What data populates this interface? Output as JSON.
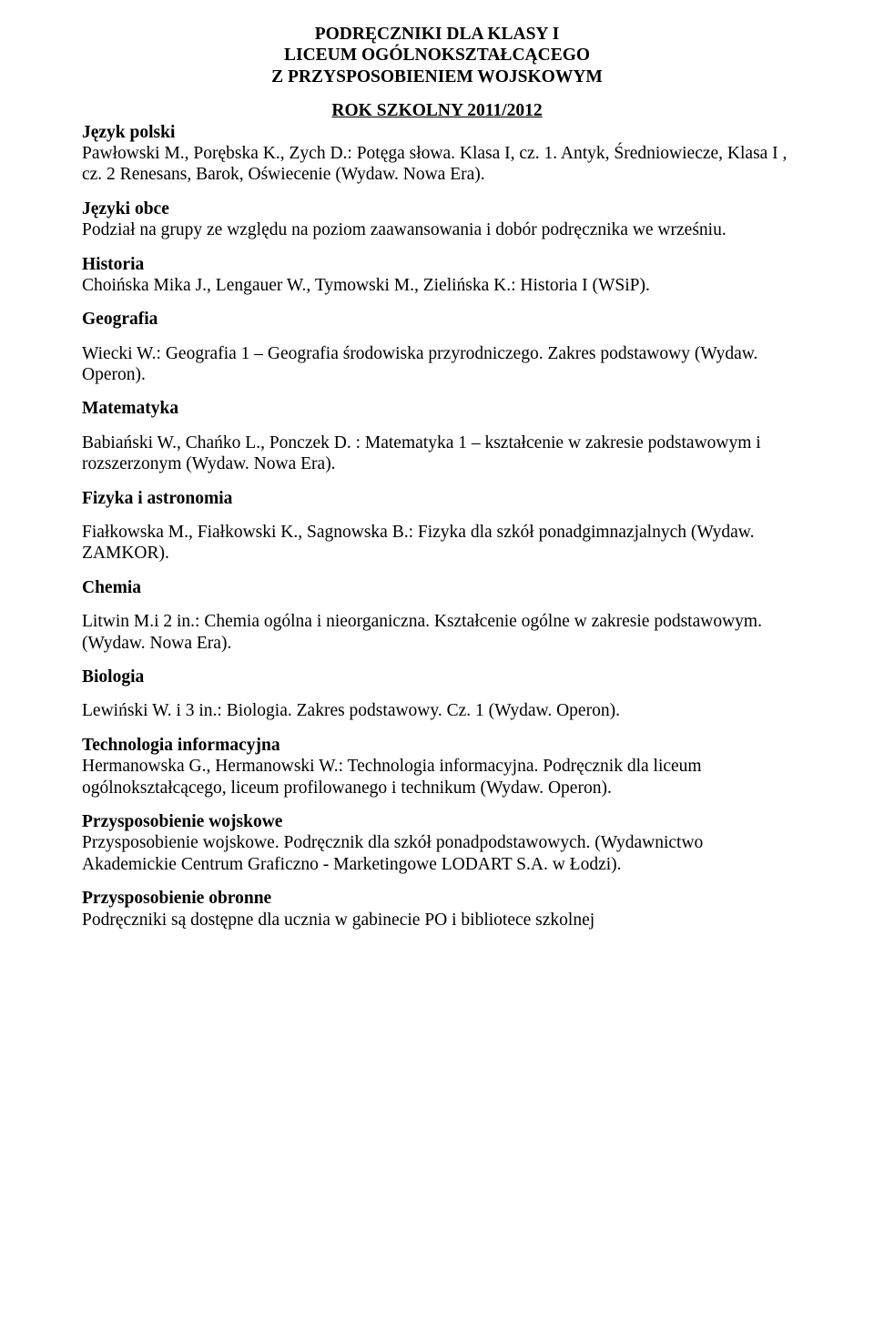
{
  "title": {
    "line1": "PODRĘCZNIKI DLA KLASY I",
    "line2": "LICEUM OGÓLNOKSZTAŁCĄCEGO",
    "line3": "Z PRZYSPOSOBIENIEM WOJSKOWYM"
  },
  "school_year": "ROK  SZKOLNY  2011/2012",
  "polski": {
    "heading": "Język polski",
    "text": "Pawłowski M., Porębska K., Zych D.: Potęga słowa. Klasa I, cz. 1. Antyk, Średniowiecze, Klasa I , cz. 2 Renesans, Barok, Oświecenie (Wydaw. Nowa Era)."
  },
  "obce": {
    "heading": "Języki obce",
    "text": "Podział na grupy ze względu na poziom zaawansowania i dobór podręcznika we wrześniu."
  },
  "historia": {
    "heading": "Historia",
    "text": "Choińska Mika J., Lengauer W., Tymowski M., Zielińska K.: Historia I (WSiP)."
  },
  "geografia": {
    "heading": "Geografia",
    "text": "Wiecki W.: Geografia 1 – Geografia środowiska przyrodniczego. Zakres podstawowy (Wydaw. Operon)."
  },
  "matematyka": {
    "heading": "Matematyka",
    "text": "Babiański W., Chańko L., Ponczek D. : Matematyka 1 – kształcenie w zakresie podstawowym i rozszerzonym (Wydaw. Nowa Era)."
  },
  "fizyka": {
    "heading": "Fizyka i astronomia",
    "text": "Fiałkowska M., Fiałkowski K., Sagnowska B.: Fizyka dla szkół ponadgimnazjalnych (Wydaw. ZAMKOR)."
  },
  "chemia": {
    "heading": "Chemia",
    "text": "Litwin M.i 2 in.: Chemia ogólna i nieorganiczna. Kształcenie ogólne w zakresie podstawowym. (Wydaw. Nowa  Era)."
  },
  "biologia": {
    "heading": "Biologia",
    "text": "Lewiński W. i 3 in.: Biologia. Zakres podstawowy. Cz. 1 (Wydaw. Operon)."
  },
  "ti": {
    "heading": "Technologia informacyjna",
    "text": "Hermanowska G., Hermanowski W.: Technologia informacyjna. Podręcznik dla liceum ogólnokształcącego, liceum profilowanego i technikum (Wydaw. Operon)."
  },
  "pw": {
    "heading": "Przysposobienie wojskowe",
    "text": "Przysposobienie wojskowe. Podręcznik dla szkół ponadpodstawowych. (Wydawnictwo Akademickie Centrum Graficzno - Marketingowe LODART  S.A. w Łodzi)."
  },
  "po": {
    "heading": "Przysposobienie obronne",
    "text": "Podręczniki są dostępne dla ucznia w gabinecie PO i bibliotece szkolnej"
  }
}
